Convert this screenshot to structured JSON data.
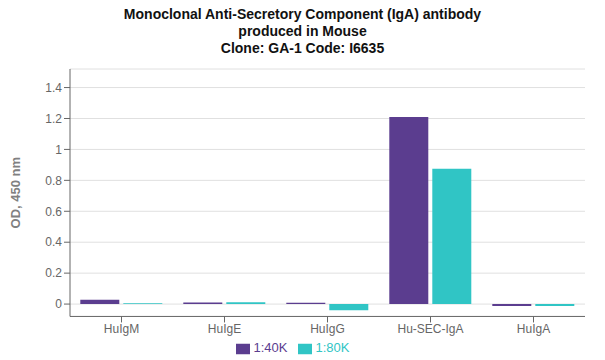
{
  "chart_data": {
    "type": "bar",
    "title": "Monoclonal Anti-Secretory Component (IgA) antibody\nproduced in Mouse\nClone: GA-1  Code: I6635",
    "categories": [
      "HuIgM",
      "HuIgE",
      "HuIgG",
      "Hu-SEC-IgA",
      "HuIgA"
    ],
    "series": [
      {
        "name": "1:40K",
        "color": "#5b3d8f",
        "values": [
          0.028,
          0.01,
          0.008,
          1.21,
          -0.012
        ]
      },
      {
        "name": "1:80K",
        "color": "#30c5c5",
        "values": [
          0.005,
          0.012,
          -0.04,
          0.875,
          -0.012
        ]
      }
    ],
    "ylabel": "OD, 450 nm",
    "ylim": [
      -0.08,
      1.52
    ],
    "yticks": [
      0.0,
      0.2,
      0.4,
      0.6,
      0.8,
      1.0,
      1.2,
      1.4
    ],
    "grid": true,
    "legend": "bottom"
  }
}
